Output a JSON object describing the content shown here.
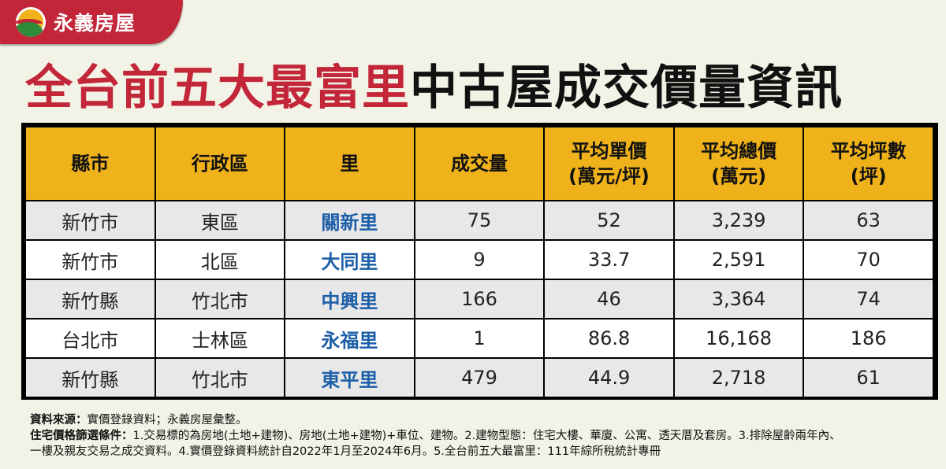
{
  "brand": {
    "logo_icon": "yongyi-sun-logo-icon",
    "name": "永義房屋",
    "bar_color": "#c22638"
  },
  "title": {
    "red_part": "全台前五大最富里",
    "black_part": "中古屋成交價量資訊"
  },
  "table": {
    "header_color": "#f0b21b",
    "li_color": "#1d5fa8",
    "columns": [
      {
        "line1": "縣市",
        "line2": ""
      },
      {
        "line1": "行政區",
        "line2": ""
      },
      {
        "line1": "里",
        "line2": ""
      },
      {
        "line1": "成交量",
        "line2": ""
      },
      {
        "line1": "平均單價",
        "line2": "(萬元/坪)"
      },
      {
        "line1": "平均總價",
        "line2": "(萬元)"
      },
      {
        "line1": "平均坪數",
        "line2": "(坪)"
      }
    ],
    "rows": [
      {
        "county": "新竹市",
        "district": "東區",
        "li": "關新里",
        "volume": "75",
        "unit_price": "52",
        "total_price": "3,239",
        "area": "63"
      },
      {
        "county": "新竹市",
        "district": "北區",
        "li": "大同里",
        "volume": "9",
        "unit_price": "33.7",
        "total_price": "2,591",
        "area": "70"
      },
      {
        "county": "新竹縣",
        "district": "竹北市",
        "li": "中興里",
        "volume": "166",
        "unit_price": "46",
        "total_price": "3,364",
        "area": "74"
      },
      {
        "county": "台北市",
        "district": "士林區",
        "li": "永福里",
        "volume": "1",
        "unit_price": "86.8",
        "total_price": "16,168",
        "area": "186"
      },
      {
        "county": "新竹縣",
        "district": "竹北市",
        "li": "東平里",
        "volume": "479",
        "unit_price": "44.9",
        "total_price": "2,718",
        "area": "61"
      }
    ]
  },
  "notes": {
    "source_label": "資料來源：",
    "source_text": "實價登錄資料；永義房屋彙整。",
    "criteria_label": "住宅價格篩選條件：",
    "criteria_line1": "1.交易標的為房地(土地+建物)、房地(土地+建物)+車位、建物。2.建物型態：住宅大樓、華廈、公寓、透天厝及套房。3.排除屋齡兩年內、",
    "criteria_line2": "一樓及親友交易之成交資料。4.實價登錄資料統計自2022年1月至2024年6月。5.全台前五大最富里：111年綜所稅統計專冊"
  }
}
